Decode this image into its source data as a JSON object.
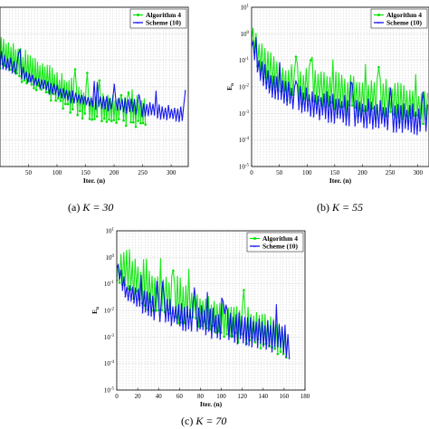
{
  "chart_data": [
    {
      "type": "line",
      "caption": "(a) K = 30",
      "caption_prefix": "(a)",
      "caption_math": "K = 30",
      "xlabel": "Iter. (n)",
      "ylabel": "",
      "xlim": [
        0,
        330
      ],
      "ylim_log10": [
        -5,
        1
      ],
      "log_y": true,
      "grid": true,
      "legend_position": "top-right",
      "x_ticks": [
        "50",
        "100",
        "150",
        "200",
        "250",
        "300"
      ],
      "y_ticks": [],
      "series": [
        {
          "name": "Algorithm 4",
          "color": "#00e400",
          "x": [
            0,
            40,
            80,
            100,
            130,
            160,
            200,
            230,
            255
          ],
          "upper": [
            1,
            0.3,
            0.1,
            0.04,
            0.02,
            0.008,
            0.005,
            0.004,
            0.003
          ],
          "lower": [
            0.05,
            0.01,
            0.004,
            0.002,
            0.0008,
            0.0005,
            0.0004,
            0.0003,
            0.0003
          ]
        },
        {
          "name": "Scheme (10)",
          "color": "#0000ee",
          "x": [
            0,
            60,
            110,
            160,
            220,
            260,
            300,
            320,
            325
          ],
          "upper": [
            0.3,
            0.03,
            0.01,
            0.005,
            0.004,
            0.003,
            0.002,
            0.002,
            0.003
          ],
          "lower": [
            0.05,
            0.01,
            0.003,
            0.0015,
            0.001,
            0.0007,
            0.0005,
            0.0004,
            0.0003
          ]
        }
      ]
    },
    {
      "type": "line",
      "caption": "(b) K = 55",
      "caption_prefix": "(b)",
      "caption_math": "K = 55",
      "xlabel": "Iter. (n)",
      "ylabel": "E_n",
      "xlim": [
        0,
        320
      ],
      "ylim_log10": [
        -5,
        1
      ],
      "log_y": true,
      "grid": true,
      "legend_position": "top-right",
      "x_ticks": [
        "0",
        "50",
        "100",
        "150",
        "200",
        "250",
        "300"
      ],
      "y_ticks": [
        "10^-5",
        "10^-4",
        "10^-3",
        "10^-2",
        "10^-1",
        "10^0",
        "10^1"
      ],
      "series": [
        {
          "name": "Algorithm 4",
          "color": "#00e400",
          "x": [
            0,
            10,
            30,
            60,
            100,
            150,
            200,
            250,
            300,
            320
          ],
          "upper": [
            3,
            1,
            0.3,
            0.1,
            0.06,
            0.04,
            0.03,
            0.02,
            0.01,
            0.01
          ],
          "lower": [
            0.5,
            0.05,
            0.01,
            0.003,
            0.002,
            0.001,
            0.0007,
            0.0005,
            0.0004,
            0.0003
          ]
        },
        {
          "name": "Scheme (10)",
          "color": "#0000ee",
          "x": [
            0,
            10,
            30,
            60,
            100,
            150,
            200,
            250,
            300,
            320
          ],
          "upper": [
            1,
            0.2,
            0.05,
            0.02,
            0.01,
            0.006,
            0.004,
            0.003,
            0.002,
            0.003
          ],
          "lower": [
            0.3,
            0.03,
            0.005,
            0.002,
            0.0008,
            0.0004,
            0.0003,
            0.0002,
            0.00015,
            0.0001
          ]
        }
      ]
    },
    {
      "type": "line",
      "caption": "(c) K = 70",
      "caption_prefix": "(c)",
      "caption_math": "K = 70",
      "xlabel": "Iter. (n)",
      "ylabel": "E_n",
      "xlim": [
        0,
        180
      ],
      "ylim_log10": [
        -5,
        1
      ],
      "log_y": true,
      "grid": true,
      "legend_position": "top-right",
      "x_ticks": [
        "0",
        "20",
        "40",
        "60",
        "80",
        "100",
        "120",
        "140",
        "160",
        "180"
      ],
      "y_ticks": [
        "10^-5",
        "10^-4",
        "10^-3",
        "10^-2",
        "10^-1",
        "10^0",
        "10^1"
      ],
      "series": [
        {
          "name": "Algorithm 4",
          "color": "#00e400",
          "x": [
            0,
            5,
            10,
            20,
            30,
            40,
            60,
            80,
            100,
            120,
            140,
            160,
            162
          ],
          "upper": [
            0.5,
            2,
            3,
            0.8,
            0.5,
            0.3,
            0.2,
            0.05,
            0.02,
            0.02,
            0.01,
            0.003,
            0.001
          ],
          "lower": [
            0.1,
            0.05,
            0.03,
            0.02,
            0.01,
            0.005,
            0.003,
            0.002,
            0.001,
            0.0005,
            0.0003,
            0.0002,
            0.0001
          ]
        },
        {
          "name": "Scheme (10)",
          "color": "#0000ee",
          "x": [
            0,
            5,
            10,
            20,
            30,
            40,
            60,
            80,
            100,
            120,
            140,
            160,
            165
          ],
          "upper": [
            1,
            0.3,
            0.1,
            0.08,
            0.05,
            0.04,
            0.02,
            0.02,
            0.01,
            0.01,
            0.005,
            0.005,
            0.001
          ],
          "lower": [
            0.3,
            0.05,
            0.02,
            0.01,
            0.005,
            0.003,
            0.002,
            0.001,
            0.0007,
            0.0005,
            0.0003,
            0.0002,
            0.0001
          ]
        }
      ]
    }
  ]
}
